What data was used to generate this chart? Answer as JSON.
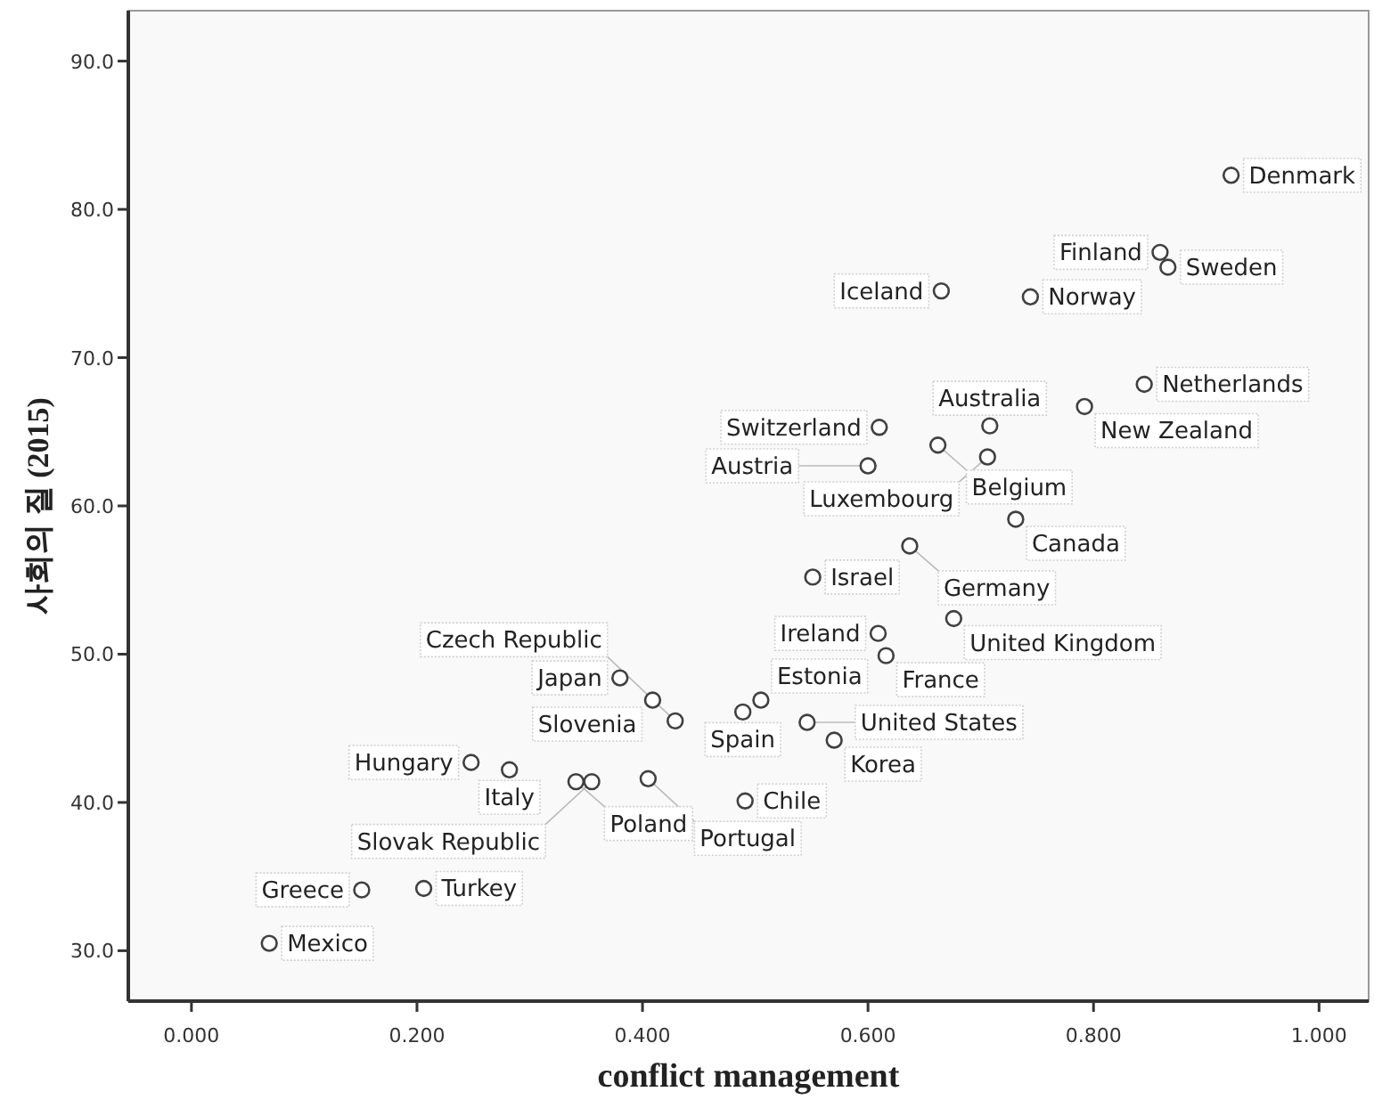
{
  "chart_data": {
    "type": "scatter",
    "xlabel": "conflict management",
    "ylabel": "사회의 질 (2015)",
    "xlim": [
      -0.056,
      1.044
    ],
    "ylim": [
      26.6,
      93.4
    ],
    "xticks": [
      {
        "value": 0,
        "label": "0.000"
      },
      {
        "value": 0.2,
        "label": "0.200"
      },
      {
        "value": 0.4,
        "label": "0.400"
      },
      {
        "value": 0.6,
        "label": "0.600"
      },
      {
        "value": 0.8,
        "label": "0.800"
      },
      {
        "value": 1,
        "label": "1.000"
      }
    ],
    "yticks": [
      {
        "value": 30,
        "label": "30.0"
      },
      {
        "value": 40,
        "label": "40.0"
      },
      {
        "value": 50,
        "label": "50.0"
      },
      {
        "value": 60,
        "label": "60.0"
      },
      {
        "value": 70,
        "label": "70.0"
      },
      {
        "value": 80,
        "label": "80.0"
      },
      {
        "value": 90,
        "label": "90.0"
      }
    ],
    "grid": false,
    "marker": "circle",
    "series": [
      {
        "color": "#404040",
        "x": [
          0.922,
          0.859,
          0.866,
          0.665,
          0.744,
          0.845,
          0.792,
          0.708,
          0.61,
          0.662,
          0.706,
          0.6,
          0.731,
          0.551,
          0.637,
          0.676,
          0.609,
          0.616,
          0.505,
          0.489,
          0.546,
          0.57,
          0.491,
          0.38,
          0.409,
          0.429,
          0.248,
          0.282,
          0.341,
          0.355,
          0.405,
          0.151,
          0.206,
          0.069
        ],
        "values": [
          82.3,
          77.1,
          76.1,
          74.5,
          74.1,
          68.2,
          66.7,
          65.4,
          65.3,
          64.1,
          63.3,
          62.7,
          59.1,
          55.2,
          57.3,
          52.4,
          51.4,
          49.9,
          46.9,
          46.1,
          45.4,
          44.2,
          40.1,
          48.4,
          46.9,
          45.5,
          42.7,
          42.2,
          41.4,
          41.4,
          41.6,
          34.1,
          34.2,
          30.5
        ]
      }
    ],
    "annotations": [
      {
        "text": "Denmark",
        "x": 0.922,
        "y": 82.3
      },
      {
        "text": "Finland",
        "x": 0.859,
        "y": 77.1
      },
      {
        "text": "Sweden",
        "x": 0.866,
        "y": 76.1
      },
      {
        "text": "Iceland",
        "x": 0.665,
        "y": 74.5
      },
      {
        "text": "Norway",
        "x": 0.744,
        "y": 74.1
      },
      {
        "text": "Netherlands",
        "x": 0.845,
        "y": 68.2
      },
      {
        "text": "New Zealand",
        "x": 0.792,
        "y": 66.7
      },
      {
        "text": "Australia",
        "x": 0.708,
        "y": 65.4
      },
      {
        "text": "Switzerland",
        "x": 0.61,
        "y": 65.3
      },
      {
        "text": "Belgium",
        "x": 0.662,
        "y": 64.1
      },
      {
        "text": "Luxembourg",
        "x": 0.706,
        "y": 63.3
      },
      {
        "text": "Austria",
        "x": 0.6,
        "y": 62.7
      },
      {
        "text": "Canada",
        "x": 0.731,
        "y": 59.1
      },
      {
        "text": "Israel",
        "x": 0.551,
        "y": 55.2
      },
      {
        "text": "Germany",
        "x": 0.637,
        "y": 57.3
      },
      {
        "text": "United Kingdom",
        "x": 0.676,
        "y": 52.4
      },
      {
        "text": "Ireland",
        "x": 0.609,
        "y": 51.4
      },
      {
        "text": "France",
        "x": 0.616,
        "y": 49.9
      },
      {
        "text": "Estonia",
        "x": 0.505,
        "y": 46.9
      },
      {
        "text": "Spain",
        "x": 0.489,
        "y": 46.1
      },
      {
        "text": "United States",
        "x": 0.546,
        "y": 45.4
      },
      {
        "text": "Korea",
        "x": 0.57,
        "y": 44.2
      },
      {
        "text": "Chile",
        "x": 0.491,
        "y": 40.1
      },
      {
        "text": "Japan",
        "x": 0.38,
        "y": 48.4
      },
      {
        "text": "Slovenia",
        "x": 0.409,
        "y": 46.9
      },
      {
        "text": "Czech Republic",
        "x": 0.429,
        "y": 45.5
      },
      {
        "text": "Hungary",
        "x": 0.248,
        "y": 42.7
      },
      {
        "text": "Italy",
        "x": 0.282,
        "y": 42.2
      },
      {
        "text": "Poland",
        "x": 0.341,
        "y": 41.4
      },
      {
        "text": "Slovak Republic",
        "x": 0.355,
        "y": 41.4
      },
      {
        "text": "Portugal",
        "x": 0.405,
        "y": 41.6
      },
      {
        "text": "Greece",
        "x": 0.151,
        "y": 34.1
      },
      {
        "text": "Turkey",
        "x": 0.206,
        "y": 34.2
      },
      {
        "text": "Mexico",
        "x": 0.069,
        "y": 30.5
      }
    ]
  }
}
